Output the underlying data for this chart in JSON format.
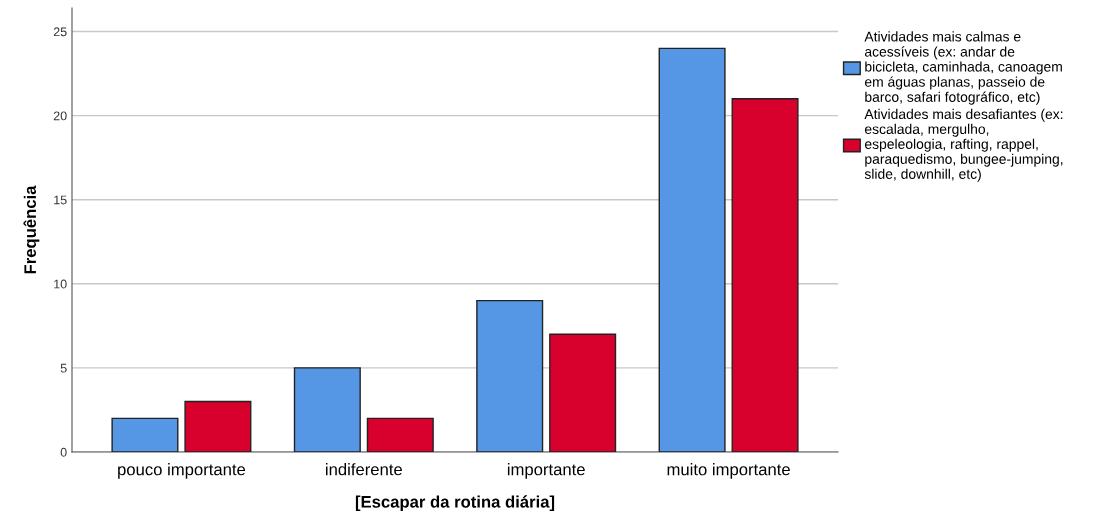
{
  "chart_data": {
    "type": "bar",
    "xlabel": "[Escapar da rotina diária]",
    "ylabel": "Frequência",
    "categories": [
      "pouco importante",
      "indiferente",
      "importante",
      "muito importante"
    ],
    "series": [
      {
        "name": "Atividades mais calmas e\nacessíveis (ex: andar de\nbicicleta, caminhada, canoagem\nem águas planas, passeio de\nbarco, safari fotográfico, etc)",
        "color": "#5597e5",
        "values": [
          2,
          5,
          9,
          24
        ]
      },
      {
        "name": "Atividades mais desafiantes (ex:\nescalada, mergulho,\nespeleologia, rafting, rappel,\nparaquedismo, bungee-jumping,\nslide, downhill, etc)",
        "color": "#d8002d",
        "values": [
          3,
          2,
          7,
          21
        ]
      }
    ],
    "ylim": [
      0,
      26.4
    ],
    "yticks": [
      0,
      5,
      10,
      15,
      20,
      25
    ],
    "grid": "y",
    "legend": "right"
  }
}
